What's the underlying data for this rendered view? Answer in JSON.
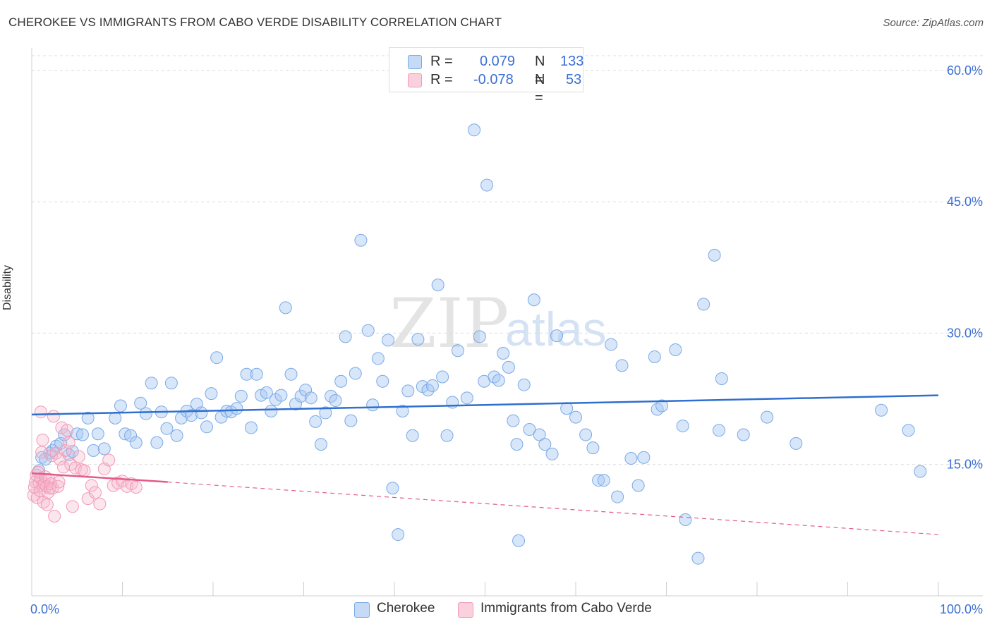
{
  "title": "CHEROKEE VS IMMIGRANTS FROM CABO VERDE DISABILITY CORRELATION CHART",
  "source": "Source: ZipAtlas.com",
  "watermark": {
    "zip": "ZIP",
    "atlas": "atlas"
  },
  "legend": {
    "r_label": "R =",
    "n_label": "N =",
    "items": [
      {
        "name": "Cherokee",
        "r": "0.079",
        "n": "133",
        "color": "#a9c8f2"
      },
      {
        "name": "Immigrants from Cabo Verde",
        "r": "-0.078",
        "n": "53",
        "color": "#f5b8cc"
      }
    ]
  },
  "chart_data": {
    "type": "scatter",
    "title": "CHEROKEE VS IMMIGRANTS FROM CABO VERDE DISABILITY CORRELATION CHART",
    "xlabel": "",
    "ylabel": "Disability",
    "xlim": [
      0,
      100
    ],
    "ylim": [
      0,
      62
    ],
    "x_tick_labels": [
      "0.0%",
      "100.0%"
    ],
    "y_ticks": [
      15,
      30,
      45,
      60
    ],
    "y_tick_labels": [
      "15.0%",
      "30.0%",
      "45.0%",
      "60.0%"
    ],
    "grid": true,
    "series": [
      {
        "name": "Cherokee",
        "color": "#7aaae6",
        "line_color": "#2f6fd0",
        "trend": {
          "x": [
            0,
            100
          ],
          "y": [
            20.7,
            22.9
          ],
          "dashed_extension": false
        },
        "points": [
          [
            0.8,
            14.3
          ],
          [
            1.1,
            15.8
          ],
          [
            1.5,
            15.6
          ],
          [
            2.0,
            16.3
          ],
          [
            2.3,
            16.6
          ],
          [
            2.7,
            17.1
          ],
          [
            3.2,
            17.4
          ],
          [
            3.6,
            18.4
          ],
          [
            4.1,
            16.1
          ],
          [
            4.5,
            16.5
          ],
          [
            5.0,
            18.5
          ],
          [
            5.6,
            18.4
          ],
          [
            6.2,
            20.3
          ],
          [
            6.8,
            16.6
          ],
          [
            7.3,
            18.5
          ],
          [
            8.0,
            16.8
          ],
          [
            9.2,
            20.3
          ],
          [
            9.8,
            21.7
          ],
          [
            10.3,
            18.5
          ],
          [
            10.9,
            18.3
          ],
          [
            11.5,
            17.5
          ],
          [
            12.0,
            22.0
          ],
          [
            12.6,
            20.8
          ],
          [
            13.2,
            24.3
          ],
          [
            13.8,
            17.5
          ],
          [
            14.3,
            21.0
          ],
          [
            14.9,
            19.1
          ],
          [
            15.4,
            24.3
          ],
          [
            16.0,
            18.3
          ],
          [
            16.5,
            20.3
          ],
          [
            17.1,
            21.1
          ],
          [
            17.6,
            20.6
          ],
          [
            18.2,
            21.9
          ],
          [
            18.7,
            20.9
          ],
          [
            19.3,
            19.3
          ],
          [
            19.8,
            23.1
          ],
          [
            20.4,
            27.2
          ],
          [
            20.9,
            20.4
          ],
          [
            21.5,
            21.1
          ],
          [
            22.0,
            21.0
          ],
          [
            22.6,
            21.4
          ],
          [
            23.1,
            22.8
          ],
          [
            23.7,
            25.3
          ],
          [
            24.2,
            19.2
          ],
          [
            24.8,
            25.3
          ],
          [
            25.3,
            22.9
          ],
          [
            25.9,
            23.2
          ],
          [
            26.4,
            21.1
          ],
          [
            26.9,
            22.4
          ],
          [
            27.5,
            22.9
          ],
          [
            28.0,
            32.9
          ],
          [
            28.6,
            25.3
          ],
          [
            29.1,
            21.9
          ],
          [
            29.7,
            22.8
          ],
          [
            30.2,
            23.5
          ],
          [
            30.8,
            22.6
          ],
          [
            31.3,
            19.9
          ],
          [
            31.9,
            17.3
          ],
          [
            32.4,
            20.9
          ],
          [
            33.0,
            22.8
          ],
          [
            33.5,
            22.3
          ],
          [
            34.1,
            24.5
          ],
          [
            34.6,
            29.6
          ],
          [
            35.2,
            20.0
          ],
          [
            35.7,
            25.4
          ],
          [
            36.3,
            40.6
          ],
          [
            37.1,
            30.3
          ],
          [
            37.6,
            21.8
          ],
          [
            38.2,
            27.1
          ],
          [
            38.7,
            24.5
          ],
          [
            39.3,
            29.2
          ],
          [
            39.8,
            12.3
          ],
          [
            40.4,
            7.0
          ],
          [
            40.9,
            21.1
          ],
          [
            41.5,
            23.4
          ],
          [
            42.0,
            18.3
          ],
          [
            42.6,
            29.3
          ],
          [
            43.1,
            23.9
          ],
          [
            43.7,
            23.5
          ],
          [
            44.2,
            24.0
          ],
          [
            44.8,
            35.5
          ],
          [
            45.3,
            25.0
          ],
          [
            45.8,
            18.3
          ],
          [
            46.4,
            22.1
          ],
          [
            47.0,
            28.0
          ],
          [
            48.0,
            22.6
          ],
          [
            48.8,
            53.2
          ],
          [
            49.4,
            29.6
          ],
          [
            49.9,
            24.5
          ],
          [
            50.2,
            46.9
          ],
          [
            51.0,
            25.0
          ],
          [
            51.5,
            24.6
          ],
          [
            52.0,
            27.7
          ],
          [
            52.6,
            26.1
          ],
          [
            53.1,
            20.0
          ],
          [
            53.5,
            17.3
          ],
          [
            53.7,
            6.3
          ],
          [
            54.3,
            24.1
          ],
          [
            54.9,
            19.0
          ],
          [
            55.4,
            33.8
          ],
          [
            56.0,
            18.4
          ],
          [
            56.6,
            17.3
          ],
          [
            57.4,
            16.2
          ],
          [
            57.9,
            29.7
          ],
          [
            59.0,
            21.4
          ],
          [
            60.0,
            20.4
          ],
          [
            61.1,
            18.4
          ],
          [
            61.9,
            16.9
          ],
          [
            62.5,
            13.2
          ],
          [
            63.1,
            13.2
          ],
          [
            63.9,
            28.7
          ],
          [
            64.6,
            11.3
          ],
          [
            65.1,
            26.3
          ],
          [
            66.1,
            15.7
          ],
          [
            66.9,
            12.6
          ],
          [
            67.5,
            15.8
          ],
          [
            68.7,
            27.3
          ],
          [
            69.0,
            21.3
          ],
          [
            69.5,
            21.7
          ],
          [
            71.0,
            28.1
          ],
          [
            71.8,
            19.4
          ],
          [
            72.1,
            8.7
          ],
          [
            73.5,
            4.3
          ],
          [
            74.1,
            33.3
          ],
          [
            75.3,
            38.9
          ],
          [
            75.8,
            18.9
          ],
          [
            76.1,
            24.8
          ],
          [
            78.5,
            18.4
          ],
          [
            81.1,
            20.4
          ],
          [
            84.3,
            17.4
          ],
          [
            93.7,
            21.2
          ],
          [
            96.7,
            18.9
          ],
          [
            98.0,
            14.2
          ]
        ]
      },
      {
        "name": "Immigrants from Cabo Verde",
        "color": "#f09ab7",
        "line_color": "#e35b88",
        "trend": {
          "x": [
            0,
            15
          ],
          "y": [
            14.0,
            13.0
          ],
          "dashed_to": [
            100,
            7.0
          ]
        },
        "points": [
          [
            0.2,
            11.5
          ],
          [
            0.3,
            12.4
          ],
          [
            0.4,
            13.0
          ],
          [
            0.5,
            13.8
          ],
          [
            0.6,
            11.2
          ],
          [
            0.7,
            14.1
          ],
          [
            0.8,
            12.9
          ],
          [
            0.9,
            12.0
          ],
          [
            1.0,
            13.4
          ],
          [
            1.1,
            16.4
          ],
          [
            1.2,
            12.6
          ],
          [
            1.3,
            10.7
          ],
          [
            1.4,
            12.8
          ],
          [
            1.5,
            13.6
          ],
          [
            1.6,
            12.5
          ],
          [
            1.7,
            10.4
          ],
          [
            1.8,
            11.8
          ],
          [
            1.9,
            13.3
          ],
          [
            2.0,
            12.3
          ],
          [
            2.1,
            12.8
          ],
          [
            2.2,
            16.0
          ],
          [
            2.3,
            12.3
          ],
          [
            2.4,
            20.5
          ],
          [
            2.5,
            9.1
          ],
          [
            2.7,
            16.3
          ],
          [
            2.9,
            12.5
          ],
          [
            3.1,
            15.6
          ],
          [
            3.3,
            19.2
          ],
          [
            3.5,
            14.7
          ],
          [
            3.7,
            16.6
          ],
          [
            3.9,
            18.9
          ],
          [
            4.1,
            17.5
          ],
          [
            4.3,
            15.0
          ],
          [
            4.5,
            10.2
          ],
          [
            4.8,
            14.6
          ],
          [
            5.2,
            15.9
          ],
          [
            5.5,
            14.4
          ],
          [
            5.8,
            14.3
          ],
          [
            6.2,
            11.1
          ],
          [
            6.6,
            12.6
          ],
          [
            7.0,
            11.8
          ],
          [
            7.5,
            10.5
          ],
          [
            8.0,
            14.5
          ],
          [
            8.5,
            15.5
          ],
          [
            9.0,
            12.6
          ],
          [
            9.5,
            12.9
          ],
          [
            10.0,
            13.1
          ],
          [
            10.5,
            12.5
          ],
          [
            11.0,
            12.8
          ],
          [
            11.5,
            12.4
          ],
          [
            1.0,
            21.0
          ],
          [
            1.2,
            17.8
          ],
          [
            3.0,
            13.0
          ]
        ]
      }
    ]
  }
}
